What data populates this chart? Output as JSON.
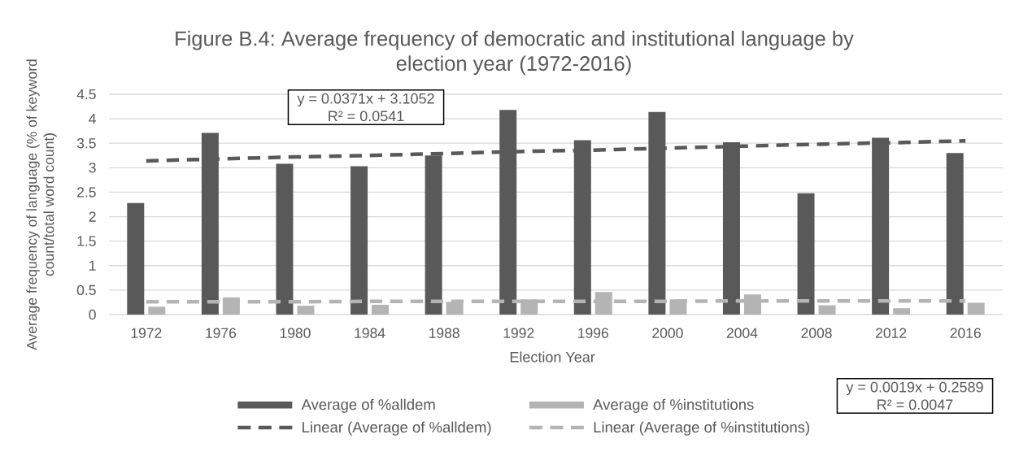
{
  "chart_data": {
    "type": "bar",
    "title": "Figure B.4: Average frequency of democratic and institutional language by election year (1972-2016)",
    "xlabel": "Election Year",
    "ylabel": "Average frequency of language (% of keyword count/total word count)",
    "categories": [
      "1972",
      "1976",
      "1980",
      "1984",
      "1988",
      "1992",
      "1996",
      "2000",
      "2004",
      "2008",
      "2012",
      "2016"
    ],
    "series": [
      {
        "name": "Average of %alldem",
        "color": "#595959",
        "values": [
          2.28,
          3.71,
          3.08,
          3.03,
          3.25,
          4.18,
          3.56,
          4.14,
          3.52,
          2.48,
          3.61,
          3.3
        ]
      },
      {
        "name": "Average of %institutions",
        "color": "#b4b4b4",
        "values": [
          0.16,
          0.35,
          0.18,
          0.2,
          0.26,
          0.31,
          0.46,
          0.31,
          0.41,
          0.19,
          0.13,
          0.24
        ]
      },
      {
        "name": "Linear (Average of %alldem)",
        "type": "line",
        "line_style": "dashed",
        "color": "#595959",
        "values": [
          3.14,
          3.18,
          3.22,
          3.25,
          3.29,
          3.33,
          3.36,
          3.4,
          3.44,
          3.48,
          3.51,
          3.55
        ]
      },
      {
        "name": "Linear (Average of %institutions)",
        "type": "line",
        "line_style": "dashed",
        "color": "#b4b4b4",
        "values": [
          0.26,
          0.26,
          0.26,
          0.27,
          0.27,
          0.27,
          0.27,
          0.27,
          0.28,
          0.28,
          0.28,
          0.28
        ]
      }
    ],
    "ylim": [
      0,
      4.5
    ],
    "yticks": [
      0,
      0.5,
      1,
      1.5,
      2,
      2.5,
      3,
      3.5,
      4,
      4.5
    ],
    "grid": "y",
    "legend": "bottom",
    "annotations": [
      "y = 0.0371x + 3.1052",
      "R² = 0.0541",
      "y = 0.0019x + 0.2589",
      "R² = 0.0047"
    ]
  }
}
